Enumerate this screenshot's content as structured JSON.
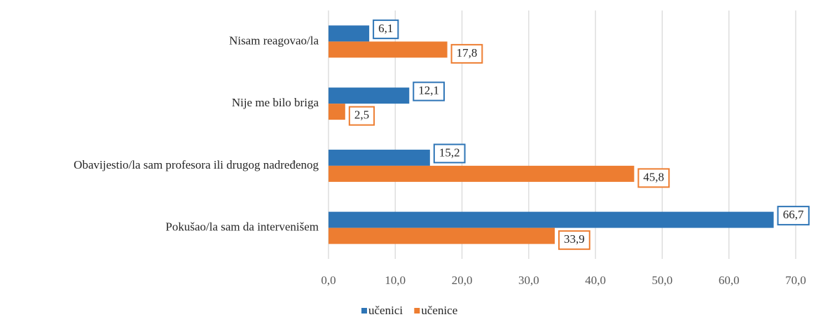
{
  "chart_data": {
    "type": "bar",
    "orientation": "horizontal",
    "categories": [
      "Nisam reagovao/la",
      "Nije me bilo briga",
      "Obavijestio/la sam profesora ili drugog nadređenog",
      "Pokušao/la sam da intervenišem"
    ],
    "series": [
      {
        "name": "učenici",
        "color": "#2e75b6",
        "values": [
          6.1,
          12.1,
          15.2,
          66.7
        ],
        "value_labels": [
          "6,1",
          "12,1",
          "15,2",
          "66,7"
        ]
      },
      {
        "name": "učenice",
        "color": "#ed7d31",
        "values": [
          17.8,
          2.5,
          45.8,
          33.9
        ],
        "value_labels": [
          "17,8",
          "2,5",
          "45,8",
          "33,9"
        ]
      }
    ],
    "xlim": [
      0,
      70
    ],
    "xticks": [
      {
        "value": 0,
        "label": "0,0"
      },
      {
        "value": 10,
        "label": "10,0"
      },
      {
        "value": 20,
        "label": "20,0"
      },
      {
        "value": 30,
        "label": "30,0"
      },
      {
        "value": 40,
        "label": "40,0"
      },
      {
        "value": 50,
        "label": "50,0"
      },
      {
        "value": 60,
        "label": "60,0"
      },
      {
        "value": 70,
        "label": "70,0"
      }
    ],
    "grid": true,
    "legend": "bottom"
  }
}
